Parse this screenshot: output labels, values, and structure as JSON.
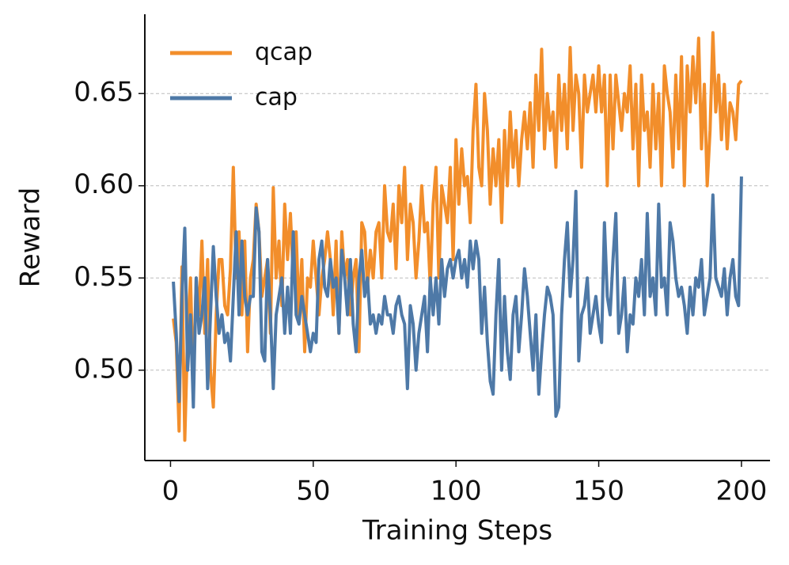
{
  "chart_data": {
    "type": "line",
    "x_label": "Training Steps",
    "y_label": "Reward",
    "x": [
      1,
      2,
      3,
      4,
      5,
      6,
      7,
      8,
      9,
      10,
      11,
      12,
      13,
      14,
      15,
      16,
      17,
      18,
      19,
      20,
      21,
      22,
      23,
      24,
      25,
      26,
      27,
      28,
      29,
      30,
      31,
      32,
      33,
      34,
      35,
      36,
      37,
      38,
      39,
      40,
      41,
      42,
      43,
      44,
      45,
      46,
      47,
      48,
      49,
      50,
      51,
      52,
      53,
      54,
      55,
      56,
      57,
      58,
      59,
      60,
      61,
      62,
      63,
      64,
      65,
      66,
      67,
      68,
      69,
      70,
      71,
      72,
      73,
      74,
      75,
      76,
      77,
      78,
      79,
      80,
      81,
      82,
      83,
      84,
      85,
      86,
      87,
      88,
      89,
      90,
      91,
      92,
      93,
      94,
      95,
      96,
      97,
      98,
      99,
      100,
      101,
      102,
      103,
      104,
      105,
      106,
      107,
      108,
      109,
      110,
      111,
      112,
      113,
      114,
      115,
      116,
      117,
      118,
      119,
      120,
      121,
      122,
      123,
      124,
      125,
      126,
      127,
      128,
      129,
      130,
      131,
      132,
      133,
      134,
      135,
      136,
      137,
      138,
      139,
      140,
      141,
      142,
      143,
      144,
      145,
      146,
      147,
      148,
      149,
      150,
      151,
      152,
      153,
      154,
      155,
      156,
      157,
      158,
      159,
      160,
      161,
      162,
      163,
      164,
      165,
      166,
      167,
      168,
      169,
      170,
      171,
      172,
      173,
      174,
      175,
      176,
      177,
      178,
      179,
      180,
      181,
      182,
      183,
      184,
      185,
      186,
      187,
      188,
      189,
      190,
      191,
      192,
      193,
      194,
      195,
      196,
      197,
      198,
      199,
      200
    ],
    "series": [
      {
        "name": "qcap",
        "color": "#f28e2b",
        "values": [
          0.528,
          0.515,
          0.467,
          0.556,
          0.462,
          0.52,
          0.55,
          0.49,
          0.55,
          0.53,
          0.57,
          0.52,
          0.56,
          0.5,
          0.48,
          0.53,
          0.56,
          0.56,
          0.535,
          0.53,
          0.555,
          0.61,
          0.55,
          0.575,
          0.53,
          0.57,
          0.51,
          0.55,
          0.56,
          0.59,
          0.575,
          0.54,
          0.55,
          0.56,
          0.52,
          0.599,
          0.55,
          0.57,
          0.535,
          0.59,
          0.56,
          0.585,
          0.55,
          0.575,
          0.53,
          0.56,
          0.51,
          0.55,
          0.545,
          0.57,
          0.55,
          0.53,
          0.55,
          0.56,
          0.575,
          0.56,
          0.53,
          0.57,
          0.52,
          0.575,
          0.55,
          0.56,
          0.53,
          0.55,
          0.56,
          0.51,
          0.58,
          0.575,
          0.545,
          0.565,
          0.55,
          0.575,
          0.58,
          0.55,
          0.6,
          0.575,
          0.57,
          0.59,
          0.555,
          0.6,
          0.58,
          0.61,
          0.56,
          0.59,
          0.58,
          0.55,
          0.57,
          0.6,
          0.575,
          0.58,
          0.545,
          0.59,
          0.61,
          0.55,
          0.6,
          0.59,
          0.58,
          0.61,
          0.56,
          0.625,
          0.59,
          0.62,
          0.6,
          0.605,
          0.58,
          0.63,
          0.655,
          0.61,
          0.6,
          0.65,
          0.63,
          0.59,
          0.62,
          0.6,
          0.625,
          0.58,
          0.63,
          0.6,
          0.64,
          0.61,
          0.63,
          0.6,
          0.625,
          0.64,
          0.62,
          0.645,
          0.61,
          0.66,
          0.63,
          0.674,
          0.62,
          0.65,
          0.63,
          0.64,
          0.61,
          0.66,
          0.63,
          0.655,
          0.62,
          0.675,
          0.63,
          0.66,
          0.65,
          0.61,
          0.66,
          0.64,
          0.65,
          0.66,
          0.64,
          0.665,
          0.64,
          0.66,
          0.6,
          0.66,
          0.62,
          0.66,
          0.645,
          0.63,
          0.65,
          0.64,
          0.665,
          0.62,
          0.655,
          0.6,
          0.66,
          0.63,
          0.64,
          0.61,
          0.655,
          0.62,
          0.65,
          0.6,
          0.665,
          0.65,
          0.64,
          0.61,
          0.66,
          0.62,
          0.67,
          0.6,
          0.665,
          0.64,
          0.67,
          0.645,
          0.68,
          0.62,
          0.655,
          0.6,
          0.63,
          0.683,
          0.64,
          0.66,
          0.625,
          0.655,
          0.62,
          0.645,
          0.64,
          0.625,
          0.655,
          0.657
        ]
      },
      {
        "name": "cap",
        "color": "#4e79a7",
        "values": [
          0.548,
          0.52,
          0.483,
          0.54,
          0.577,
          0.5,
          0.53,
          0.48,
          0.55,
          0.52,
          0.53,
          0.55,
          0.49,
          0.53,
          0.567,
          0.54,
          0.52,
          0.53,
          0.515,
          0.52,
          0.505,
          0.54,
          0.575,
          0.53,
          0.57,
          0.54,
          0.53,
          0.54,
          0.54,
          0.588,
          0.575,
          0.51,
          0.505,
          0.56,
          0.53,
          0.49,
          0.53,
          0.54,
          0.55,
          0.52,
          0.545,
          0.52,
          0.575,
          0.53,
          0.525,
          0.54,
          0.53,
          0.52,
          0.51,
          0.52,
          0.515,
          0.56,
          0.57,
          0.545,
          0.54,
          0.56,
          0.545,
          0.55,
          0.52,
          0.565,
          0.55,
          0.53,
          0.56,
          0.525,
          0.51,
          0.55,
          0.565,
          0.54,
          0.55,
          0.525,
          0.53,
          0.52,
          0.53,
          0.525,
          0.54,
          0.53,
          0.53,
          0.52,
          0.535,
          0.54,
          0.53,
          0.525,
          0.49,
          0.535,
          0.525,
          0.5,
          0.52,
          0.53,
          0.54,
          0.51,
          0.55,
          0.53,
          0.55,
          0.525,
          0.56,
          0.54,
          0.555,
          0.56,
          0.55,
          0.56,
          0.565,
          0.55,
          0.56,
          0.545,
          0.57,
          0.555,
          0.57,
          0.56,
          0.52,
          0.545,
          0.515,
          0.494,
          0.487,
          0.53,
          0.56,
          0.5,
          0.54,
          0.51,
          0.495,
          0.53,
          0.54,
          0.51,
          0.53,
          0.555,
          0.54,
          0.52,
          0.5,
          0.53,
          0.487,
          0.51,
          0.53,
          0.545,
          0.54,
          0.53,
          0.475,
          0.48,
          0.53,
          0.56,
          0.58,
          0.54,
          0.56,
          0.597,
          0.505,
          0.53,
          0.535,
          0.55,
          0.52,
          0.53,
          0.54,
          0.525,
          0.515,
          0.58,
          0.54,
          0.53,
          0.56,
          0.585,
          0.52,
          0.53,
          0.55,
          0.51,
          0.53,
          0.525,
          0.55,
          0.54,
          0.56,
          0.53,
          0.585,
          0.54,
          0.55,
          0.53,
          0.59,
          0.545,
          0.55,
          0.53,
          0.58,
          0.57,
          0.55,
          0.54,
          0.545,
          0.535,
          0.52,
          0.545,
          0.53,
          0.55,
          0.545,
          0.56,
          0.53,
          0.54,
          0.55,
          0.595,
          0.55,
          0.545,
          0.54,
          0.555,
          0.53,
          0.55,
          0.56,
          0.54,
          0.535,
          0.605
        ]
      }
    ],
    "xlim": [
      -9,
      210
    ],
    "ylim": [
      0.451,
      0.693
    ],
    "xticks": [
      0,
      50,
      100,
      150,
      200
    ],
    "yticks": [
      {
        "value": 0.5,
        "label": "0.50"
      },
      0.55,
      {
        "value": 0.6,
        "label": "0.60"
      },
      0.65
    ],
    "grid": true,
    "legend": "upper left"
  }
}
